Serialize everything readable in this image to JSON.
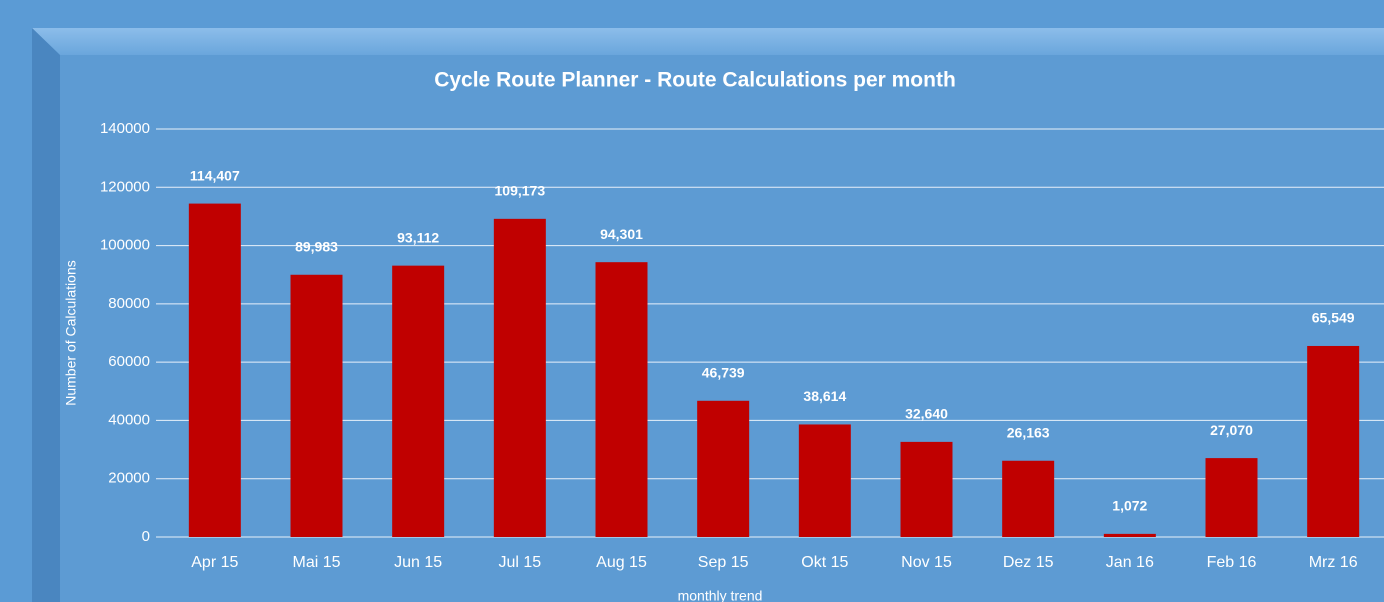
{
  "chart_data": {
    "type": "bar",
    "title": "Cycle Route Planner - Route Calculations per month",
    "x_label": "monthly trend",
    "y_label": "Number of Calculations",
    "categories": [
      "Apr 15",
      "Mai 15",
      "Jun 15",
      "Jul 15",
      "Aug 15",
      "Sep 15",
      "Okt 15",
      "Nov 15",
      "Dez 15",
      "Jan 16",
      "Feb 16",
      "Mrz 16"
    ],
    "values": [
      114407,
      89983,
      93112,
      109173,
      94301,
      46739,
      38614,
      32640,
      26163,
      1072,
      27070,
      65549
    ],
    "value_labels": [
      "114,407",
      "89,983",
      "93,112",
      "109,173",
      "94,301",
      "46,739",
      "38,614",
      "32,640",
      "26,163",
      "1,072",
      "27,070",
      "65,549"
    ],
    "color": "#c00000",
    "ylim": [
      0,
      140000
    ],
    "yticks": [
      0,
      20000,
      40000,
      60000,
      80000,
      100000,
      120000,
      140000
    ],
    "grid": true
  }
}
